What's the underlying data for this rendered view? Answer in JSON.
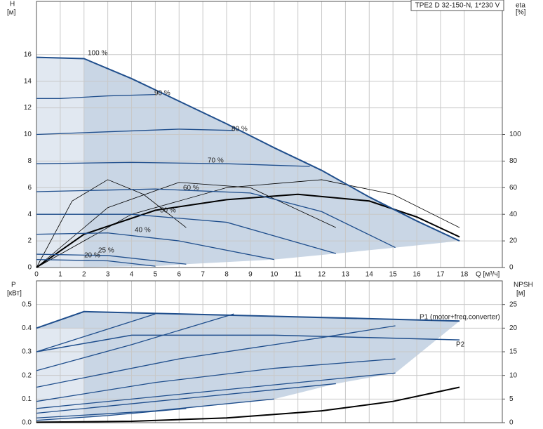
{
  "chart_data": [
    {
      "type": "line",
      "title": "TPE2 D 32-150-N, 1*230 V",
      "ylabel": [
        "H",
        "[м]"
      ],
      "y2label": [
        "eta",
        "[%]"
      ],
      "xlabel": "Q [м³/ч]",
      "xlim": [
        0,
        19.6
      ],
      "xticks": [
        0,
        1,
        2,
        3,
        4,
        5,
        6,
        7,
        8,
        9,
        10,
        11,
        12,
        13,
        14,
        15,
        16,
        17,
        18
      ],
      "ylim": [
        0,
        20
      ],
      "yticks": [
        0,
        2,
        4,
        6,
        8,
        10,
        12,
        14,
        16
      ],
      "y2lim": [
        0,
        200
      ],
      "y2ticks": [
        0,
        20,
        40,
        60,
        80,
        100
      ],
      "grid": true,
      "area_color": "#c9d6e5",
      "series": [
        {
          "name": "100 %",
          "color": "#1f4e8c",
          "x": [
            0,
            2,
            4,
            6,
            8,
            10,
            12,
            14,
            16,
            17.8
          ],
          "values": [
            15.8,
            15.7,
            14.2,
            12.5,
            10.8,
            9.0,
            7.3,
            5.3,
            3.5,
            2.0
          ]
        },
        {
          "name": "90 %",
          "color": "#1f4e8c",
          "x": [
            0,
            1,
            3,
            5
          ],
          "values": [
            12.7,
            12.7,
            12.9,
            13.0
          ]
        },
        {
          "name": "80 %",
          "color": "#1f4e8c",
          "x": [
            0,
            3,
            6,
            8.3
          ],
          "values": [
            10.0,
            10.2,
            10.4,
            10.3
          ]
        },
        {
          "name": "70 %",
          "color": "#1f4e8c",
          "x": [
            0,
            4,
            8,
            11.5
          ],
          "values": [
            7.8,
            7.9,
            7.8,
            7.6
          ]
        },
        {
          "name": "60 %",
          "color": "#1f4e8c",
          "x": [
            0,
            5,
            9,
            12,
            15.1
          ],
          "values": [
            5.7,
            5.9,
            5.6,
            4.2,
            1.5
          ]
        },
        {
          "name": "50 %",
          "color": "#1f4e8c",
          "x": [
            0,
            4,
            8,
            12.6
          ],
          "values": [
            4.0,
            4.0,
            3.4,
            1.05
          ]
        },
        {
          "name": "40 %",
          "color": "#1f4e8c",
          "x": [
            0,
            3,
            6,
            10
          ],
          "values": [
            2.5,
            2.6,
            2.0,
            0.6
          ]
        },
        {
          "name": "25 %",
          "color": "#1f4e8c",
          "x": [
            0,
            3,
            6.3
          ],
          "values": [
            1.0,
            0.9,
            0.25
          ]
        },
        {
          "name": "20 %",
          "color": "#1f4e8c",
          "x": [
            0,
            3,
            5
          ],
          "values": [
            0.6,
            0.5,
            0.1
          ]
        }
      ],
      "eta_series": [
        {
          "color": "#000000",
          "axis": "y2",
          "x": [
            0,
            2,
            5,
            8,
            11,
            14,
            16,
            17.8
          ],
          "values": [
            0,
            25,
            43,
            51,
            55,
            50,
            38,
            23
          ]
        },
        {
          "color": "#000000",
          "axis": "y2",
          "x": [
            0,
            1.5,
            3,
            4.5,
            6.3
          ],
          "values": [
            0,
            50,
            66,
            55,
            30
          ]
        },
        {
          "color": "#000000",
          "axis": "y2",
          "x": [
            0,
            3,
            6,
            9,
            12.6
          ],
          "values": [
            0,
            45,
            64,
            60,
            30
          ]
        },
        {
          "color": "#000000",
          "axis": "y2",
          "x": [
            0,
            4,
            8,
            12,
            15,
            17.8
          ],
          "values": [
            0,
            40,
            60,
            66,
            55,
            30
          ]
        }
      ]
    },
    {
      "type": "line",
      "ylabel": [
        "P",
        "[кВт]"
      ],
      "y2label": [
        "NPSH",
        "[м]"
      ],
      "xlim": [
        0,
        19.6
      ],
      "ylim": [
        0,
        0.6
      ],
      "yticks": [
        {
          "value": 0,
          "label": "0.0"
        },
        0.1,
        0.2,
        0.3,
        0.4,
        0.5
      ],
      "y2lim": [
        0,
        30
      ],
      "y2ticks": [
        0,
        5,
        10,
        15,
        20,
        25
      ],
      "grid": true,
      "area_color": "#c9d6e5",
      "series": [
        {
          "name": "P1 (motor+freq.converter)",
          "color": "#1f4e8c",
          "x": [
            0,
            2,
            6,
            10,
            14,
            17.8
          ],
          "values": [
            0.4,
            0.47,
            0.46,
            0.45,
            0.44,
            0.43
          ]
        },
        {
          "color": "#1f4e8c",
          "x": [
            0,
            5
          ],
          "values": [
            0.3,
            0.46
          ]
        },
        {
          "color": "#1f4e8c",
          "x": [
            0,
            4,
            8.3
          ],
          "values": [
            0.22,
            0.33,
            0.46
          ]
        },
        {
          "color": "#1f4e8c",
          "x": [
            0,
            6,
            12,
            15.1
          ],
          "values": [
            0.15,
            0.27,
            0.36,
            0.41
          ]
        },
        {
          "color": "#1f4e8c",
          "x": [
            0,
            5,
            10,
            15.1
          ],
          "values": [
            0.09,
            0.17,
            0.23,
            0.27
          ]
        },
        {
          "color": "#1f4e8c",
          "x": [
            0,
            5,
            10,
            15.1
          ],
          "values": [
            0.06,
            0.11,
            0.16,
            0.21
          ]
        },
        {
          "color": "#1f4e8c",
          "x": [
            0,
            5,
            12.6
          ],
          "values": [
            0.04,
            0.09,
            0.165
          ]
        },
        {
          "color": "#1f4e8c",
          "x": [
            0,
            5,
            10
          ],
          "values": [
            0.02,
            0.05,
            0.1
          ]
        },
        {
          "color": "#1f4e8c",
          "x": [
            0,
            3,
            6.3
          ],
          "values": [
            0.01,
            0.03,
            0.06
          ]
        }
      ],
      "p2_series": [
        {
          "name": "P2",
          "color": "#1f4e8c",
          "x": [
            0,
            4,
            10,
            14,
            17.8
          ],
          "values": [
            0.3,
            0.37,
            0.37,
            0.36,
            0.35
          ]
        }
      ],
      "npsh_series": [
        {
          "color": "#000000",
          "axis": "y2",
          "x": [
            0,
            4,
            8,
            12,
            15,
            17.8
          ],
          "values": [
            0.1,
            0.3,
            1,
            2.5,
            4.5,
            7.5
          ]
        }
      ]
    }
  ]
}
